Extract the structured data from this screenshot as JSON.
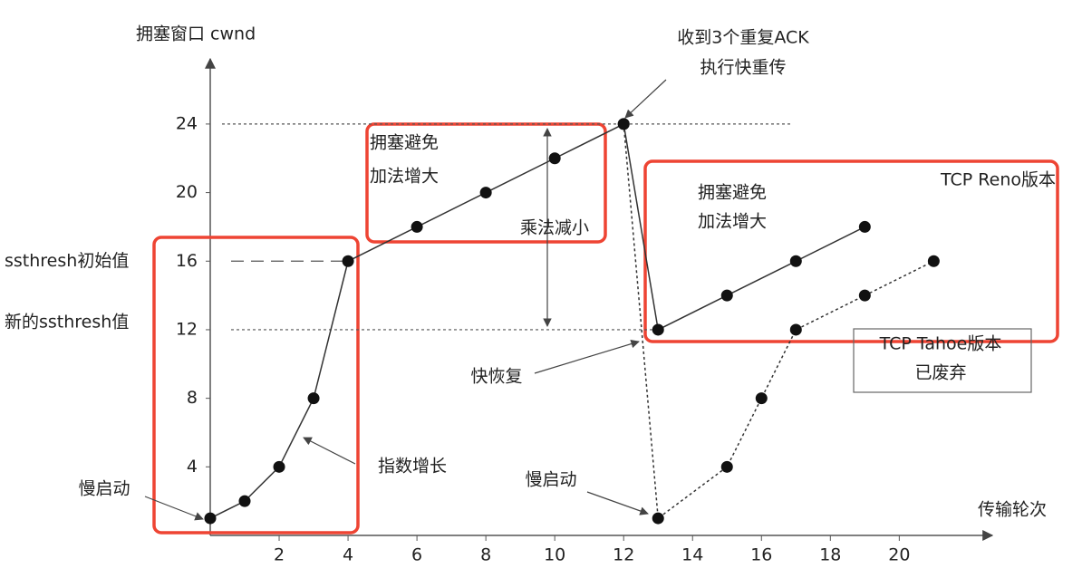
{
  "chart_data": {
    "type": "line",
    "ylabel": "拥塞窗口 cwnd",
    "xlabel": "传输轮次",
    "series": [
      {
        "name": "TCP Reno版本",
        "color": "#333333",
        "style": "solid",
        "x": [
          0,
          1,
          2,
          3,
          4,
          6,
          8,
          10,
          12,
          13,
          15,
          17,
          19
        ],
        "values": [
          1,
          2,
          4,
          8,
          16,
          18,
          20,
          22,
          24,
          12,
          14,
          16,
          18
        ]
      },
      {
        "name": "TCP Tahoe版本",
        "color": "#333333",
        "style": "dotted",
        "x": [
          12,
          13,
          15,
          16,
          17,
          19,
          21
        ],
        "values": [
          24,
          1,
          4,
          8,
          12,
          14,
          16
        ]
      }
    ],
    "xlim": [
      0,
      22.7
    ],
    "ylim": [
      0,
      27.8
    ],
    "xticks": [
      2,
      4,
      6,
      8,
      10,
      12,
      14,
      16,
      18,
      20
    ],
    "yticks": [
      4,
      8,
      12,
      16,
      20,
      24
    ],
    "threshold_labels": [
      "ssthresh初始值",
      "新的ssthresh值"
    ],
    "annotations": [
      "收到3个重复ACK",
      "执行快重传",
      "拥塞避免",
      "加法增大",
      "乘法减小",
      "拥塞避免",
      "加法增大",
      "快恢复",
      "指数增长",
      "慢启动",
      "慢启动",
      "已废弃"
    ]
  }
}
